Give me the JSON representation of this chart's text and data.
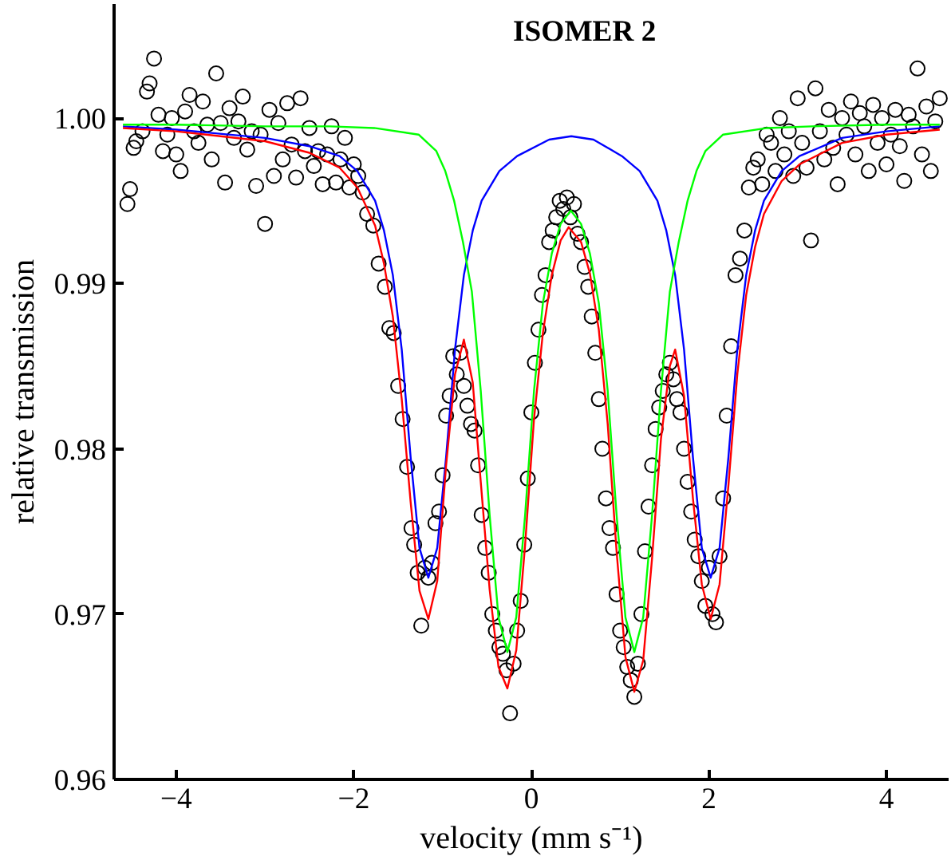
{
  "chart_data": {
    "type": "line",
    "title": "ISOMER 2",
    "xlabel": "velocity (mm s⁻¹)",
    "ylabel": "relative transmission",
    "xlim": [
      -4.7,
      4.7
    ],
    "xticks": [
      -4,
      -2,
      0,
      2,
      4
    ],
    "ylim": [
      0.96,
      1.0069
    ],
    "yticks": [
      {
        "value": 0.96,
        "label": "0.96"
      },
      {
        "value": 0.97,
        "label": "0.97"
      },
      {
        "value": 0.98,
        "label": "0.98"
      },
      {
        "value": 0.99,
        "label": "0.99"
      },
      {
        "value": 1.0,
        "label": "1.00"
      }
    ],
    "grid": false,
    "series": [
      {
        "type": "scatter",
        "color": "#000000",
        "marker": "circle",
        "x": [
          -4.55,
          -4.52,
          -4.48,
          -4.45,
          -4.38,
          -4.33,
          -4.3,
          -4.25,
          -4.2,
          -4.15,
          -4.1,
          -4.05,
          -4.0,
          -3.95,
          -3.9,
          -3.85,
          -3.8,
          -3.75,
          -3.7,
          -3.65,
          -3.6,
          -3.55,
          -3.5,
          -3.45,
          -3.4,
          -3.35,
          -3.3,
          -3.25,
          -3.2,
          -3.15,
          -3.1,
          -3.05,
          -3.0,
          -2.95,
          -2.9,
          -2.85,
          -2.8,
          -2.75,
          -2.7,
          -2.65,
          -2.6,
          -2.55,
          -2.5,
          -2.45,
          -2.4,
          -2.35,
          -2.3,
          -2.25,
          -2.2,
          -2.15,
          -2.1,
          -2.05,
          -2.0,
          -1.95,
          -1.9,
          -1.85,
          -1.78,
          -1.72,
          -1.65,
          -1.6,
          -1.55,
          -1.5,
          -1.45,
          -1.4,
          -1.35,
          -1.32,
          -1.28,
          -1.24,
          -1.2,
          -1.16,
          -1.12,
          -1.08,
          -1.04,
          -1.0,
          -0.96,
          -0.92,
          -0.88,
          -0.84,
          -0.8,
          -0.76,
          -0.72,
          -0.68,
          -0.64,
          -0.6,
          -0.56,
          -0.52,
          -0.48,
          -0.44,
          -0.4,
          -0.36,
          -0.32,
          -0.28,
          -0.24,
          -0.2,
          -0.16,
          -0.12,
          -0.08,
          -0.04,
          0.0,
          0.04,
          0.08,
          0.12,
          0.16,
          0.2,
          0.24,
          0.28,
          0.32,
          0.36,
          0.4,
          0.44,
          0.48,
          0.52,
          0.56,
          0.6,
          0.64,
          0.68,
          0.72,
          0.76,
          0.8,
          0.84,
          0.88,
          0.92,
          0.96,
          1.0,
          1.04,
          1.08,
          1.12,
          1.16,
          1.2,
          1.24,
          1.28,
          1.32,
          1.36,
          1.4,
          1.44,
          1.48,
          1.52,
          1.56,
          1.6,
          1.64,
          1.68,
          1.72,
          1.76,
          1.8,
          1.84,
          1.88,
          1.92,
          1.96,
          2.0,
          2.04,
          2.08,
          2.12,
          2.16,
          2.2,
          2.25,
          2.3,
          2.35,
          2.4,
          2.45,
          2.5,
          2.55,
          2.6,
          2.65,
          2.7,
          2.75,
          2.8,
          2.85,
          2.9,
          2.95,
          3.0,
          3.05,
          3.1,
          3.15,
          3.2,
          3.25,
          3.3,
          3.35,
          3.4,
          3.45,
          3.5,
          3.55,
          3.6,
          3.65,
          3.7,
          3.75,
          3.8,
          3.85,
          3.9,
          3.95,
          4.0,
          4.05,
          4.1,
          4.15,
          4.2,
          4.25,
          4.3,
          4.35,
          4.4,
          4.45,
          4.5,
          4.55,
          4.6
        ],
        "values": [
          0.9948,
          0.9957,
          0.9982,
          0.9986,
          0.9992,
          1.0016,
          1.0021,
          1.0036,
          1.0002,
          0.998,
          0.999,
          1.0,
          0.9978,
          0.9968,
          1.0004,
          1.0014,
          0.9992,
          0.9985,
          1.001,
          0.9996,
          0.9975,
          1.0027,
          0.9997,
          0.9961,
          1.0006,
          0.9988,
          0.9998,
          1.0013,
          0.9981,
          0.9992,
          0.9959,
          0.999,
          0.9936,
          1.0005,
          0.9965,
          0.9997,
          0.9975,
          1.0009,
          0.9984,
          0.9964,
          1.0012,
          0.998,
          0.9994,
          0.9971,
          0.998,
          0.996,
          0.9978,
          0.9995,
          0.9961,
          0.9975,
          0.9988,
          0.9958,
          0.9972,
          0.9965,
          0.9955,
          0.9942,
          0.9935,
          0.9912,
          0.9898,
          0.9873,
          0.987,
          0.9838,
          0.9818,
          0.9789,
          0.9752,
          0.9742,
          0.9725,
          0.9693,
          0.9728,
          0.9722,
          0.9731,
          0.9755,
          0.9762,
          0.9784,
          0.982,
          0.9832,
          0.9856,
          0.9845,
          0.9858,
          0.9838,
          0.9826,
          0.9815,
          0.9811,
          0.979,
          0.976,
          0.974,
          0.9725,
          0.97,
          0.969,
          0.968,
          0.9676,
          0.9666,
          0.964,
          0.967,
          0.969,
          0.9708,
          0.9742,
          0.9782,
          0.9822,
          0.9852,
          0.9872,
          0.9893,
          0.9905,
          0.9925,
          0.9932,
          0.994,
          0.995,
          0.9945,
          0.9952,
          0.994,
          0.9948,
          0.993,
          0.9925,
          0.991,
          0.9898,
          0.988,
          0.9858,
          0.983,
          0.98,
          0.977,
          0.9752,
          0.974,
          0.9712,
          0.969,
          0.968,
          0.9668,
          0.966,
          0.965,
          0.967,
          0.97,
          0.9738,
          0.9765,
          0.979,
          0.9812,
          0.9825,
          0.9835,
          0.9845,
          0.9852,
          0.9842,
          0.983,
          0.9822,
          0.98,
          0.978,
          0.9762,
          0.9745,
          0.9735,
          0.972,
          0.9705,
          0.9728,
          0.97,
          0.9695,
          0.9735,
          0.977,
          0.982,
          0.9862,
          0.9905,
          0.9915,
          0.9932,
          0.9958,
          0.997,
          0.9975,
          0.996,
          0.999,
          0.9985,
          0.9968,
          1.0,
          0.9978,
          0.9992,
          0.9965,
          1.0012,
          0.9985,
          0.997,
          0.9926,
          1.0018,
          0.9992,
          0.9975,
          1.0005,
          0.9982,
          0.996,
          1.0,
          0.999,
          1.001,
          0.9978,
          1.0003,
          0.9995,
          0.9968,
          1.0008,
          0.9985,
          1.0,
          0.9972,
          0.999,
          1.0005,
          0.9983,
          0.9962,
          1.0002,
          0.9995,
          1.003,
          0.9978,
          1.0007,
          0.9968,
          0.9998,
          1.0012
        ]
      },
      {
        "color": "#0000ff",
        "x": [
          -4.6,
          -4.0,
          -3.0,
          -2.5,
          -2.16,
          -1.96,
          -1.76,
          -1.66,
          -1.56,
          -1.46,
          -1.36,
          -1.26,
          -1.16,
          -1.06,
          -0.96,
          -0.86,
          -0.76,
          -0.66,
          -0.56,
          -0.36,
          -0.16,
          0.2,
          0.45,
          0.7,
          1.02,
          1.22,
          1.42,
          1.52,
          1.62,
          1.72,
          1.82,
          1.92,
          2.02,
          2.12,
          2.22,
          2.32,
          2.42,
          2.52,
          2.62,
          2.82,
          3.02,
          3.5,
          4.0,
          4.6
        ],
        "values": [
          0.9995,
          0.9993,
          0.9988,
          0.9983,
          0.9977,
          0.9968,
          0.995,
          0.9932,
          0.9905,
          0.986,
          0.9795,
          0.974,
          0.9722,
          0.974,
          0.9795,
          0.986,
          0.9905,
          0.9932,
          0.995,
          0.9968,
          0.9977,
          0.9987,
          0.9989,
          0.9987,
          0.9977,
          0.9968,
          0.995,
          0.9932,
          0.9905,
          0.986,
          0.9795,
          0.974,
          0.9722,
          0.974,
          0.9795,
          0.986,
          0.9905,
          0.9932,
          0.995,
          0.9968,
          0.9977,
          0.9988,
          0.9992,
          0.9995
        ]
      },
      {
        "color": "#00ff00",
        "x": [
          -4.6,
          -4.0,
          -3.0,
          -2.27,
          -1.77,
          -1.27,
          -1.07,
          -0.97,
          -0.87,
          -0.77,
          -0.67,
          -0.57,
          -0.47,
          -0.37,
          -0.27,
          -0.17,
          -0.07,
          0.03,
          0.13,
          0.23,
          0.33,
          0.445,
          0.56,
          0.66,
          0.76,
          0.86,
          0.96,
          1.06,
          1.16,
          1.26,
          1.36,
          1.46,
          1.56,
          1.66,
          1.76,
          1.86,
          1.96,
          2.16,
          2.66,
          3.16,
          4.0,
          4.6
        ],
        "values": [
          0.9996,
          0.9996,
          0.9995,
          0.9995,
          0.9994,
          0.999,
          0.998,
          0.9968,
          0.995,
          0.9925,
          0.9895,
          0.9835,
          0.976,
          0.9698,
          0.9677,
          0.9698,
          0.976,
          0.9835,
          0.9888,
          0.9918,
          0.9936,
          0.9944,
          0.9936,
          0.9918,
          0.9888,
          0.9835,
          0.976,
          0.9698,
          0.9677,
          0.9698,
          0.976,
          0.9835,
          0.9895,
          0.9925,
          0.995,
          0.9968,
          0.998,
          0.999,
          0.9994,
          0.9995,
          0.9996,
          0.9996
        ]
      },
      {
        "color": "#ff0000",
        "x": [
          -4.6,
          -4.0,
          -3.0,
          -2.5,
          -2.16,
          -1.96,
          -1.76,
          -1.66,
          -1.56,
          -1.46,
          -1.36,
          -1.26,
          -1.16,
          -1.06,
          -0.96,
          -0.86,
          -0.76,
          -0.66,
          -0.57,
          -0.47,
          -0.37,
          -0.27,
          -0.17,
          -0.07,
          0.03,
          0.13,
          0.23,
          0.33,
          0.42,
          0.56,
          0.66,
          0.76,
          0.86,
          0.96,
          1.06,
          1.16,
          1.26,
          1.36,
          1.46,
          1.56,
          1.62,
          1.72,
          1.82,
          1.92,
          2.02,
          2.12,
          2.22,
          2.32,
          2.42,
          2.52,
          2.62,
          2.82,
          3.02,
          3.5,
          4.0,
          4.6
        ],
        "values": [
          0.9994,
          0.9992,
          0.9986,
          0.9979,
          0.997,
          0.9958,
          0.9935,
          0.9912,
          0.988,
          0.983,
          0.9768,
          0.9714,
          0.9697,
          0.972,
          0.979,
          0.9845,
          0.9866,
          0.984,
          0.978,
          0.9715,
          0.9668,
          0.9655,
          0.9678,
          0.9742,
          0.9818,
          0.987,
          0.9905,
          0.9926,
          0.9934,
          0.9925,
          0.9906,
          0.9872,
          0.9815,
          0.9738,
          0.9674,
          0.9653,
          0.9672,
          0.9734,
          0.9806,
          0.985,
          0.986,
          0.9832,
          0.977,
          0.9718,
          0.9697,
          0.9718,
          0.9778,
          0.9845,
          0.9893,
          0.9922,
          0.9942,
          0.9962,
          0.9972,
          0.9985,
          0.999,
          0.9993
        ]
      }
    ]
  }
}
